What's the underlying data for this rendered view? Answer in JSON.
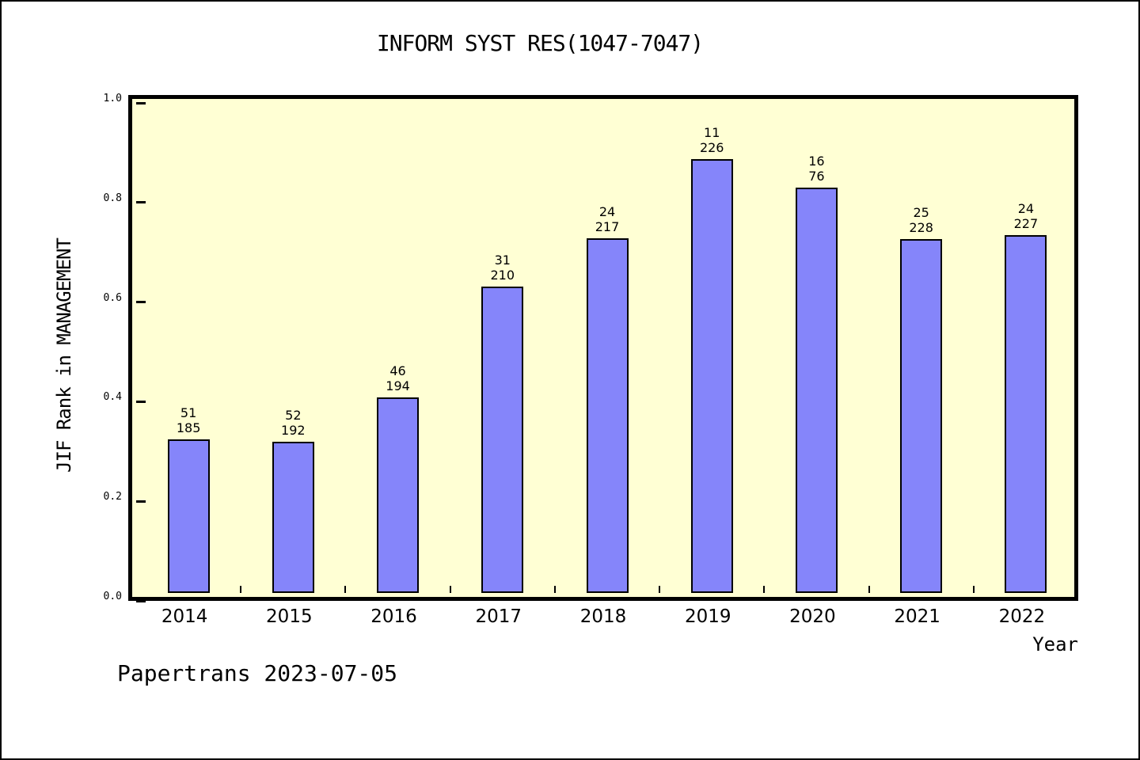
{
  "window": {
    "background_color": "#ffffff",
    "border_color": "#000000"
  },
  "chart_data": {
    "type": "bar",
    "title": "INFORM SYST RES(1047-7047)",
    "xlabel": "Year",
    "ylabel": "JIF Rank in MANAGEMENT",
    "ylim": [
      0.0,
      1.0
    ],
    "ytick_labels": [
      "0.0",
      "0.2",
      "0.4",
      "0.6",
      "0.8",
      "1.0"
    ],
    "grid": false,
    "legend_position": "none",
    "plot_background_color": "#ffffd4",
    "bar_fill_color": "#8585fa",
    "bar_stroke_color": "#000000",
    "categories": [
      "2014",
      "2015",
      "2016",
      "2017",
      "2018",
      "2019",
      "2020",
      "2021",
      "2022"
    ],
    "values": [
      0.308,
      0.304,
      0.393,
      0.616,
      0.712,
      0.871,
      0.814,
      0.711,
      0.719
    ],
    "bar_labels": [
      {
        "rank": "51",
        "total": "185"
      },
      {
        "rank": "52",
        "total": "192"
      },
      {
        "rank": "46",
        "total": "194"
      },
      {
        "rank": "31",
        "total": "210"
      },
      {
        "rank": "24",
        "total": "217"
      },
      {
        "rank": "11",
        "total": "226"
      },
      {
        "rank": "16",
        "total": "76"
      },
      {
        "rank": "25",
        "total": "228"
      },
      {
        "rank": "24",
        "total": "227"
      }
    ]
  },
  "footer": {
    "text": "Papertrans 2023-07-05"
  }
}
